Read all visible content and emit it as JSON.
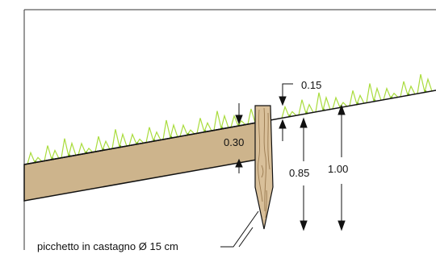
{
  "dimensions": {
    "post_projection": "0.15",
    "wedge_thickness": "0.30",
    "post_embed": "0.85",
    "post_length": "1.00"
  },
  "callout": {
    "stake_label": "picchetto in castagno Ø 15 cm"
  },
  "colors": {
    "frame": "#333333",
    "ground_line": "#111111",
    "soil_fill": "#cdb48c",
    "grass": "#a9dc3c",
    "grass_dark": "#7cb82a",
    "post_fill": "#d9c09a",
    "post_grain": "#9a7a50"
  }
}
